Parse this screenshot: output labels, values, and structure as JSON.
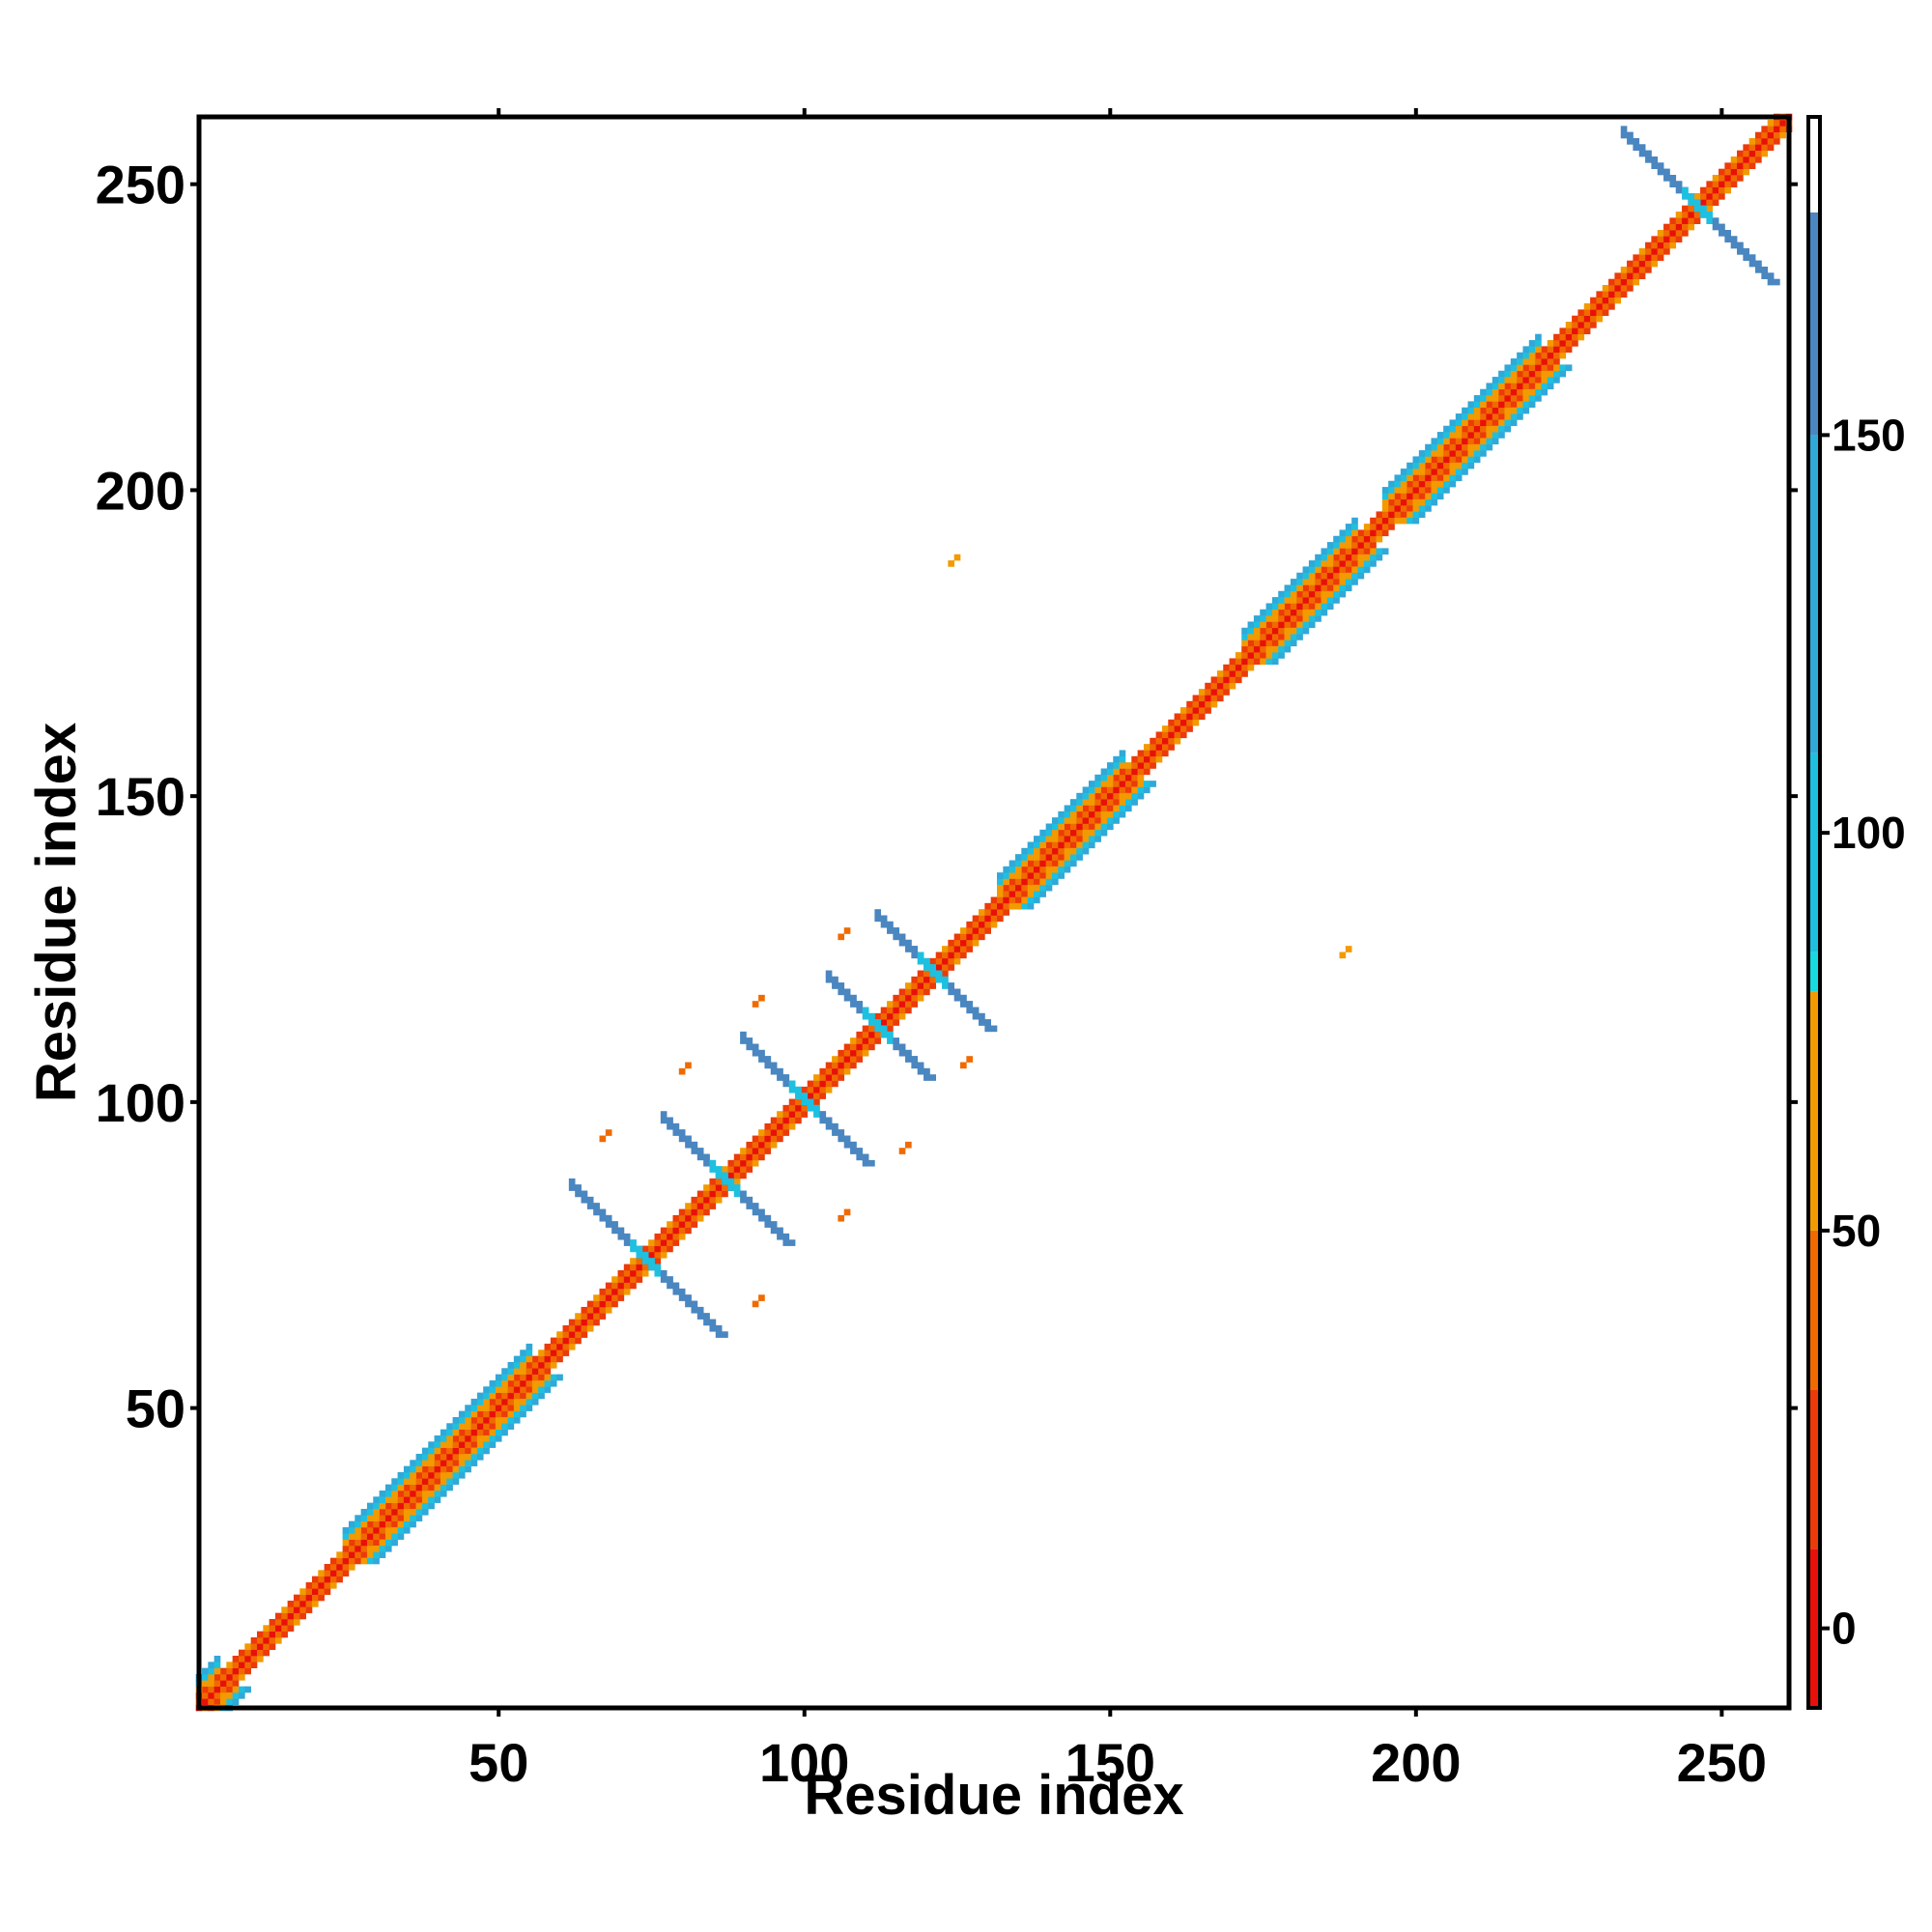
{
  "chart_data": {
    "type": "heatmap",
    "title": "",
    "xlabel": "Residue index",
    "ylabel": "Residue index",
    "xlim": [
      1,
      261
    ],
    "ylim": [
      1,
      261
    ],
    "x_ticks": [
      50,
      100,
      150,
      200,
      250
    ],
    "y_ticks": [
      50,
      100,
      150,
      200,
      250
    ],
    "colorbar": {
      "ticks": [
        0,
        50,
        100,
        150
      ],
      "range": [
        -10,
        190
      ],
      "color_bands": [
        {
          "from": -10,
          "to": 10,
          "color": "#e8100a"
        },
        {
          "from": 10,
          "to": 30,
          "color": "#ec3a08"
        },
        {
          "from": 30,
          "to": 50,
          "color": "#f06a00"
        },
        {
          "from": 50,
          "to": 80,
          "color": "#f29a00"
        },
        {
          "from": 80,
          "to": 85,
          "color": "#18d8e0"
        },
        {
          "from": 85,
          "to": 110,
          "color": "#1ec0e0"
        },
        {
          "from": 110,
          "to": 150,
          "color": "#30a8d8"
        },
        {
          "from": 150,
          "to": 178,
          "color": "#4a86c0"
        },
        {
          "from": 178,
          "to": 190,
          "color": "#ffffff"
        }
      ]
    },
    "diagonal": {
      "from": 1,
      "to": 261,
      "values": [
        "0",
        "30-50",
        "50-80"
      ]
    },
    "helix_regions": [
      {
        "start": 1,
        "end": 4
      },
      {
        "start": 25,
        "end": 55
      },
      {
        "start": 132,
        "end": 152
      },
      {
        "start": 172,
        "end": 190
      },
      {
        "start": 195,
        "end": 220
      }
    ],
    "cross_features": [
      {
        "center": [
          74,
          74
        ],
        "half_length": 12,
        "value": 155
      },
      {
        "center": [
          87,
          87
        ],
        "half_length": 10,
        "value": 155
      },
      {
        "center": [
          100,
          100
        ],
        "half_length": 10,
        "value": 155
      },
      {
        "center": [
          112,
          112
        ],
        "half_length": 8,
        "value": 155
      },
      {
        "center": [
          121,
          121
        ],
        "half_length": 9,
        "value": 150
      },
      {
        "center": [
          246,
          246
        ],
        "half_length": 12,
        "value": 155
      }
    ],
    "isolated_points": [
      {
        "x": 67,
        "y": 94,
        "value": 40
      },
      {
        "x": 80,
        "y": 105,
        "value": 40
      },
      {
        "x": 92,
        "y": 116,
        "value": 40
      },
      {
        "x": 106,
        "y": 127,
        "value": 40
      },
      {
        "x": 92,
        "y": 67,
        "value": 40
      },
      {
        "x": 106,
        "y": 81,
        "value": 40
      },
      {
        "x": 116,
        "y": 92,
        "value": 40
      },
      {
        "x": 126,
        "y": 106,
        "value": 40
      },
      {
        "x": 124,
        "y": 188,
        "value": 60
      },
      {
        "x": 188,
        "y": 124,
        "value": 60
      }
    ]
  }
}
